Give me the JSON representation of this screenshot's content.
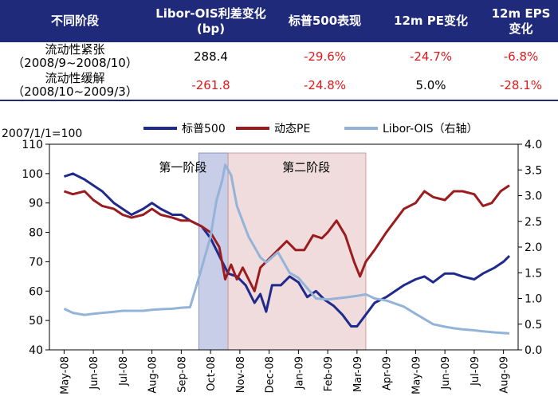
{
  "table": {
    "headers": [
      "不同阶段",
      "Libor-OIS利差变化 (bp)",
      "标普500表现",
      "12m PE变化",
      "12m EPS 变化"
    ],
    "rows": [
      {
        "label_line1": "流动性紧张",
        "label_line2": "（2008/9~2008/10）",
        "cells": [
          "288.4",
          "-29.6%",
          "-24.7%",
          "-6.8%"
        ]
      },
      {
        "label_line1": "流动性缓解",
        "label_line2": "（2008/10~2009/3）",
        "cells": [
          "-261.8",
          "-24.8%",
          "5.0%",
          "-28.1%"
        ]
      }
    ]
  },
  "colors": {
    "header_bg": "#1f2a7a",
    "sp500": "#1f2a8c",
    "pe": "#9b1c1f",
    "libor": "#94b3d8",
    "phase1_fill": "#c8cde8",
    "phase2_fill": "#f0dcdc",
    "negative_text": "#e0191c"
  },
  "chart_data": {
    "type": "line",
    "index_note": "2007/1/1=100",
    "left_axis": {
      "min": 40,
      "max": 110,
      "ticks": [
        40,
        50,
        60,
        70,
        80,
        90,
        100,
        110
      ]
    },
    "right_axis": {
      "min": 0.0,
      "max": 4.0,
      "ticks": [
        "0.0",
        "0.5",
        "1.0",
        "1.5",
        "2.0",
        "2.5",
        "3.0",
        "3.5",
        "4.0"
      ]
    },
    "x_labels": [
      "May-08",
      "Jun-08",
      "Jul-08",
      "Aug-08",
      "Sep-08",
      "Oct-08",
      "Nov-08",
      "Dec-08",
      "Jan-09",
      "Feb-09",
      "Mar-09",
      "Apr-09",
      "May-09",
      "Jun-09",
      "Jul-09",
      "Aug-09"
    ],
    "phases": [
      {
        "label": "第一阶段",
        "start": 4.6,
        "end": 5.6
      },
      {
        "label": "第二阶段",
        "start": 5.6,
        "end": 10.3
      }
    ],
    "series": [
      {
        "name": "标普500",
        "axis": "left",
        "points": [
          [
            0,
            99
          ],
          [
            0.3,
            100
          ],
          [
            0.7,
            98
          ],
          [
            1,
            96
          ],
          [
            1.3,
            94
          ],
          [
            1.7,
            90
          ],
          [
            2,
            88
          ],
          [
            2.3,
            86
          ],
          [
            2.7,
            88
          ],
          [
            3,
            90
          ],
          [
            3.3,
            88
          ],
          [
            3.7,
            86
          ],
          [
            4,
            86
          ],
          [
            4.3,
            84
          ],
          [
            4.7,
            82
          ],
          [
            5,
            78
          ],
          [
            5.3,
            72
          ],
          [
            5.6,
            66
          ],
          [
            5.9,
            65
          ],
          [
            6.2,
            62
          ],
          [
            6.5,
            56
          ],
          [
            6.7,
            59
          ],
          [
            6.9,
            53
          ],
          [
            7.1,
            62
          ],
          [
            7.4,
            62
          ],
          [
            7.7,
            65
          ],
          [
            8,
            63
          ],
          [
            8.3,
            58
          ],
          [
            8.6,
            60
          ],
          [
            8.9,
            57
          ],
          [
            9.2,
            55
          ],
          [
            9.5,
            52
          ],
          [
            9.8,
            48
          ],
          [
            10,
            48
          ],
          [
            10.3,
            52
          ],
          [
            10.6,
            56
          ],
          [
            11,
            58
          ],
          [
            11.3,
            60
          ],
          [
            11.6,
            62
          ],
          [
            12,
            64
          ],
          [
            12.3,
            65
          ],
          [
            12.6,
            63
          ],
          [
            13,
            66
          ],
          [
            13.3,
            66
          ],
          [
            13.6,
            65
          ],
          [
            14,
            64
          ],
          [
            14.3,
            66
          ],
          [
            14.7,
            68
          ],
          [
            15,
            70
          ],
          [
            15.2,
            72
          ]
        ]
      },
      {
        "name": "动态PE",
        "axis": "left",
        "points": [
          [
            0,
            94
          ],
          [
            0.3,
            93
          ],
          [
            0.7,
            94
          ],
          [
            1,
            91
          ],
          [
            1.3,
            89
          ],
          [
            1.7,
            88
          ],
          [
            2,
            86
          ],
          [
            2.3,
            85
          ],
          [
            2.7,
            86
          ],
          [
            3,
            88
          ],
          [
            3.3,
            86
          ],
          [
            3.7,
            85
          ],
          [
            4,
            84
          ],
          [
            4.3,
            84
          ],
          [
            4.7,
            82
          ],
          [
            5,
            80
          ],
          [
            5.3,
            75
          ],
          [
            5.5,
            64
          ],
          [
            5.7,
            69
          ],
          [
            5.9,
            64
          ],
          [
            6.1,
            68
          ],
          [
            6.3,
            64
          ],
          [
            6.5,
            60
          ],
          [
            6.7,
            68
          ],
          [
            6.9,
            70
          ],
          [
            7.1,
            72
          ],
          [
            7.3,
            74
          ],
          [
            7.6,
            77
          ],
          [
            7.9,
            74
          ],
          [
            8.2,
            74
          ],
          [
            8.5,
            79
          ],
          [
            8.8,
            78
          ],
          [
            9,
            80
          ],
          [
            9.3,
            84
          ],
          [
            9.6,
            79
          ],
          [
            9.9,
            70
          ],
          [
            10.1,
            65
          ],
          [
            10.3,
            70
          ],
          [
            10.6,
            74
          ],
          [
            11,
            80
          ],
          [
            11.3,
            84
          ],
          [
            11.6,
            88
          ],
          [
            12,
            90
          ],
          [
            12.3,
            94
          ],
          [
            12.6,
            92
          ],
          [
            13,
            91
          ],
          [
            13.3,
            94
          ],
          [
            13.6,
            94
          ],
          [
            14,
            93
          ],
          [
            14.3,
            89
          ],
          [
            14.6,
            90
          ],
          [
            14.9,
            94
          ],
          [
            15.2,
            96
          ]
        ]
      },
      {
        "name": "Libor-OIS（右轴）",
        "axis": "right",
        "points": [
          [
            0,
            0.8
          ],
          [
            0.3,
            0.72
          ],
          [
            0.7,
            0.68
          ],
          [
            1,
            0.7
          ],
          [
            1.3,
            0.72
          ],
          [
            1.7,
            0.74
          ],
          [
            2,
            0.76
          ],
          [
            2.3,
            0.76
          ],
          [
            2.7,
            0.76
          ],
          [
            3,
            0.78
          ],
          [
            3.3,
            0.79
          ],
          [
            3.7,
            0.8
          ],
          [
            4,
            0.82
          ],
          [
            4.3,
            0.83
          ],
          [
            4.6,
            1.4
          ],
          [
            4.8,
            1.8
          ],
          [
            5.0,
            2.2
          ],
          [
            5.2,
            2.9
          ],
          [
            5.4,
            3.3
          ],
          [
            5.5,
            3.6
          ],
          [
            5.7,
            3.4
          ],
          [
            5.9,
            2.8
          ],
          [
            6.1,
            2.5
          ],
          [
            6.3,
            2.2
          ],
          [
            6.5,
            2.0
          ],
          [
            6.7,
            1.8
          ],
          [
            6.9,
            1.7
          ],
          [
            7.1,
            1.8
          ],
          [
            7.3,
            1.9
          ],
          [
            7.5,
            1.7
          ],
          [
            7.7,
            1.5
          ],
          [
            8,
            1.4
          ],
          [
            8.3,
            1.2
          ],
          [
            8.6,
            1.0
          ],
          [
            9,
            0.98
          ],
          [
            9.3,
            1.0
          ],
          [
            9.6,
            1.02
          ],
          [
            10,
            1.05
          ],
          [
            10.3,
            1.08
          ],
          [
            10.6,
            1.0
          ],
          [
            11,
            0.96
          ],
          [
            11.3,
            0.9
          ],
          [
            11.6,
            0.84
          ],
          [
            12,
            0.7
          ],
          [
            12.3,
            0.6
          ],
          [
            12.6,
            0.5
          ],
          [
            13,
            0.45
          ],
          [
            13.3,
            0.42
          ],
          [
            13.6,
            0.4
          ],
          [
            14,
            0.38
          ],
          [
            14.3,
            0.36
          ],
          [
            14.7,
            0.34
          ],
          [
            15.2,
            0.32
          ]
        ]
      }
    ]
  }
}
